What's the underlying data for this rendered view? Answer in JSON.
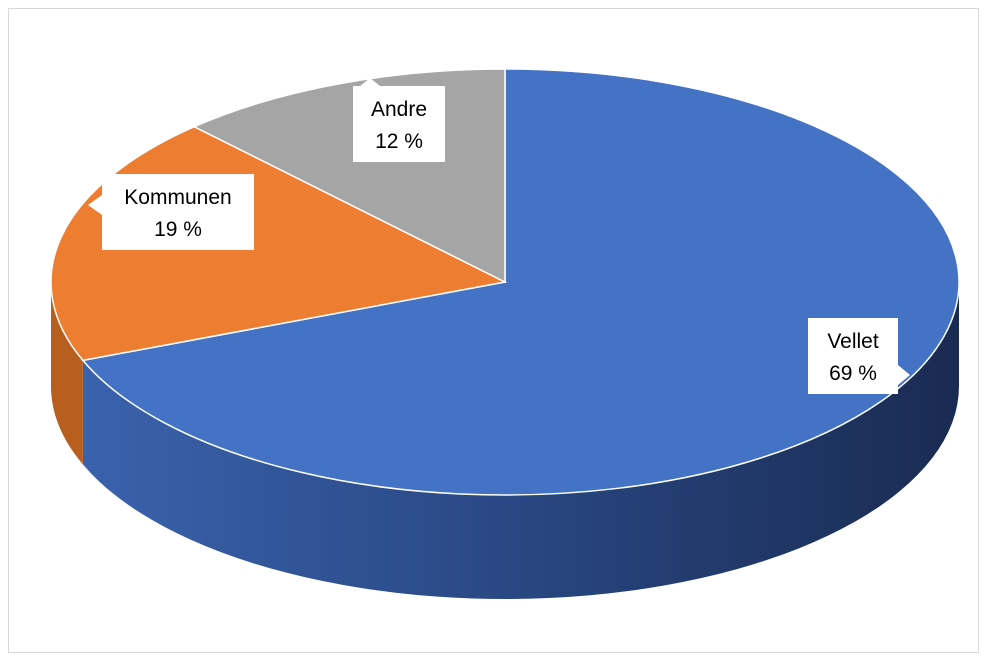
{
  "chart_data": {
    "type": "pie",
    "style": "3d",
    "title": "",
    "start": "12 o'clock",
    "direction": "clockwise",
    "slices": [
      {
        "name": "Vellet",
        "value": 69,
        "label": "69 %",
        "color": "#4472c4",
        "side_color": "#2f4e8b"
      },
      {
        "name": "Kommunen",
        "value": 19,
        "label": "19 %",
        "color": "#ed7d31",
        "side_color": "#b85e1f"
      },
      {
        "name": "Andre",
        "value": 12,
        "label": "12 %",
        "color": "#a5a5a5",
        "side_color": "#7f7f7f"
      }
    ],
    "legend": "none",
    "data_labels": "callouts with category name and percentage"
  }
}
